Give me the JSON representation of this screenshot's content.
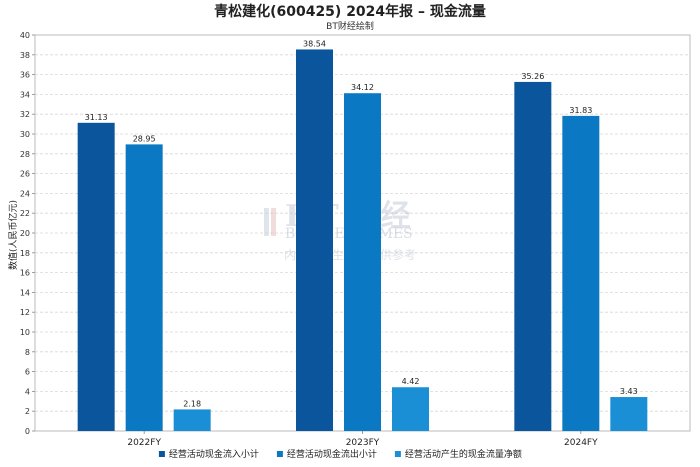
{
  "chart_data": {
    "type": "bar",
    "title": "青松建化(600425) 2024年报 – 现金流量",
    "subtitle": "BT财经绘制",
    "xlabel": "",
    "ylabel": "数值(人民币亿元)",
    "ylim": [
      0,
      40
    ],
    "yticks": [
      0,
      2,
      4,
      6,
      8,
      10,
      12,
      14,
      16,
      18,
      20,
      22,
      24,
      26,
      28,
      30,
      32,
      34,
      36,
      38,
      40
    ],
    "grid": true,
    "legend_position": "bottom",
    "categories": [
      "2022FY",
      "2023FY",
      "2024FY"
    ],
    "series": [
      {
        "name": "经营活动现金流入小计",
        "color": "#0a559c",
        "values": [
          31.13,
          38.54,
          35.26
        ],
        "labels": [
          "31.13",
          "38.54",
          "35.26"
        ]
      },
      {
        "name": "经营活动现金流出小计",
        "color": "#0a78c2",
        "values": [
          28.95,
          34.12,
          31.83
        ],
        "labels": [
          "28.95",
          "34.12",
          "31.83"
        ]
      },
      {
        "name": "经营活动产生的现金流量净额",
        "color": "#1b8fd6",
        "values": [
          2.18,
          4.42,
          3.43
        ],
        "labels": [
          "2.18",
          "4.42",
          "3.43"
        ]
      }
    ]
  },
  "watermark": {
    "brand": "BT财经",
    "brand_en": "BUSINESSTIMES",
    "note": "内容由AI生成，仅供参考"
  }
}
